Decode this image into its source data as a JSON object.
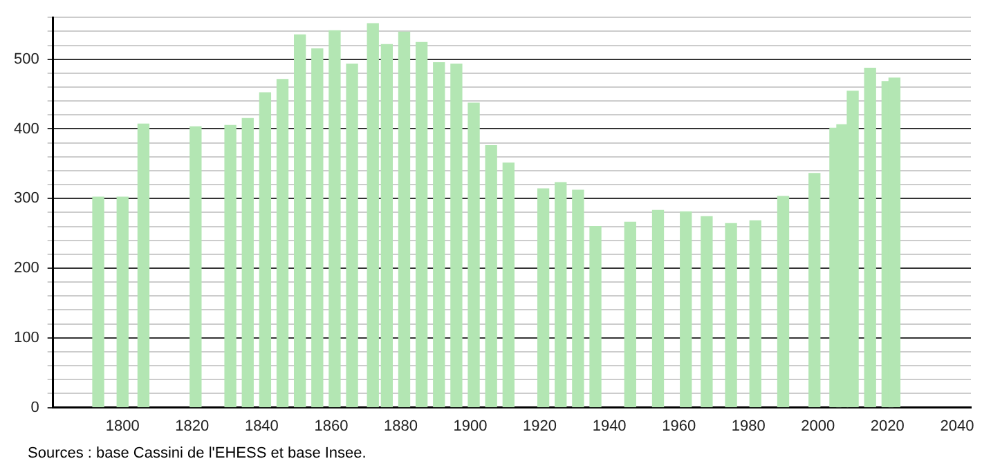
{
  "chart_data": {
    "type": "bar",
    "x": [
      1793,
      1800,
      1806,
      1821,
      1831,
      1836,
      1841,
      1846,
      1851,
      1856,
      1861,
      1866,
      1872,
      1876,
      1881,
      1886,
      1891,
      1896,
      1901,
      1906,
      1911,
      1921,
      1926,
      1931,
      1936,
      1946,
      1954,
      1962,
      1968,
      1975,
      1982,
      1990,
      1999,
      2005,
      2007,
      2010,
      2015,
      2020,
      2022
    ],
    "values": [
      302,
      302,
      407,
      403,
      405,
      415,
      452,
      471,
      535,
      515,
      541,
      493,
      551,
      521,
      539,
      524,
      495,
      493,
      437,
      376,
      351,
      314,
      323,
      312,
      260,
      266,
      283,
      281,
      274,
      264,
      268,
      303,
      336,
      401,
      406,
      454,
      487,
      468,
      473
    ],
    "color": "#b3e6b3",
    "xlim": [
      1780,
      2044
    ],
    "xticks": [
      1800,
      1820,
      1840,
      1860,
      1880,
      1900,
      1920,
      1940,
      1960,
      1980,
      2000,
      2020,
      2040
    ],
    "ylim": [
      0,
      560
    ],
    "yticks": [
      0,
      {
        "value": 20,
        "label": null
      },
      {
        "value": 40,
        "label": null
      },
      {
        "value": 60,
        "label": null
      },
      {
        "value": 80,
        "label": null
      },
      100,
      {
        "value": 120,
        "label": null
      },
      {
        "value": 140,
        "label": null
      },
      {
        "value": 160,
        "label": null
      },
      {
        "value": 180,
        "label": null
      },
      200,
      {
        "value": 220,
        "label": null
      },
      {
        "value": 240,
        "label": null
      },
      {
        "value": 260,
        "label": null
      },
      {
        "value": 280,
        "label": null
      },
      300,
      {
        "value": 320,
        "label": null
      },
      {
        "value": 340,
        "label": null
      },
      {
        "value": 360,
        "label": null
      },
      {
        "value": 380,
        "label": null
      },
      400,
      {
        "value": 420,
        "label": null
      },
      {
        "value": 440,
        "label": null
      },
      {
        "value": 460,
        "label": null
      },
      {
        "value": 480,
        "label": null
      },
      500,
      {
        "value": 520,
        "label": null
      },
      {
        "value": 540,
        "label": null
      },
      {
        "value": 560,
        "label": null
      }
    ],
    "grid": "y",
    "annotations": [
      "Sources : base Cassini de l'EHESS et base Insee."
    ]
  }
}
